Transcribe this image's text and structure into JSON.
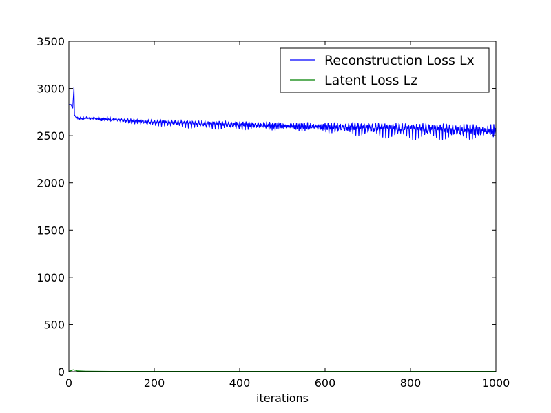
{
  "chart_data": {
    "type": "line",
    "xlabel": "iterations",
    "ylabel": "",
    "title": "",
    "xlim": [
      0,
      1000
    ],
    "ylim": [
      0,
      3500
    ],
    "xticks": [
      0,
      200,
      400,
      600,
      800,
      1000
    ],
    "yticks": [
      0,
      500,
      1000,
      1500,
      2000,
      2500,
      3000,
      3500
    ],
    "xtick_labels": [
      "0",
      "200",
      "400",
      "600",
      "800",
      "1000"
    ],
    "ytick_labels": [
      "0",
      "500",
      "1000",
      "1500",
      "2000",
      "2500",
      "3000",
      "3500"
    ],
    "grid": false,
    "legend_position": "top-right",
    "series": [
      {
        "name": "Reconstruction Loss Lx",
        "color": "#0000ff",
        "points": [
          [
            0,
            2830
          ],
          [
            5,
            2830
          ],
          [
            9,
            2790
          ],
          [
            12,
            3010
          ],
          [
            13,
            2720
          ],
          [
            16,
            2700
          ],
          [
            20,
            2690
          ],
          [
            30,
            2680
          ],
          [
            40,
            2690
          ],
          [
            50,
            2685
          ],
          [
            60,
            2685
          ],
          [
            70,
            2680
          ],
          [
            80,
            2675
          ],
          [
            90,
            2680
          ],
          [
            100,
            2670
          ],
          [
            110,
            2675
          ],
          [
            120,
            2670
          ],
          [
            140,
            2660
          ],
          [
            160,
            2655
          ],
          [
            180,
            2650
          ],
          [
            200,
            2645
          ],
          [
            220,
            2645
          ],
          [
            240,
            2640
          ],
          [
            260,
            2640
          ],
          [
            280,
            2635
          ],
          [
            300,
            2632
          ],
          [
            320,
            2630
          ],
          [
            340,
            2628
          ],
          [
            360,
            2625
          ],
          [
            380,
            2622
          ],
          [
            400,
            2620
          ],
          [
            420,
            2618
          ],
          [
            440,
            2616
          ],
          [
            460,
            2614
          ],
          [
            480,
            2612
          ],
          [
            500,
            2610
          ],
          [
            520,
            2608
          ],
          [
            540,
            2606
          ],
          [
            560,
            2604
          ],
          [
            580,
            2602
          ],
          [
            600,
            2600
          ],
          [
            620,
            2598
          ],
          [
            640,
            2596
          ],
          [
            660,
            2594
          ],
          [
            680,
            2592
          ],
          [
            700,
            2590
          ],
          [
            720,
            2588
          ],
          [
            740,
            2586
          ],
          [
            760,
            2584
          ],
          [
            780,
            2582
          ],
          [
            800,
            2580
          ],
          [
            820,
            2578
          ],
          [
            840,
            2576
          ],
          [
            860,
            2574
          ],
          [
            880,
            2572
          ],
          [
            900,
            2570
          ],
          [
            920,
            2568
          ],
          [
            940,
            2566
          ],
          [
            960,
            2564
          ],
          [
            980,
            2562
          ],
          [
            1000,
            2560
          ]
        ]
      },
      {
        "name": "Latent Loss Lz",
        "color": "#008000",
        "points": [
          [
            0,
            5
          ],
          [
            5,
            10
          ],
          [
            10,
            20
          ],
          [
            15,
            15
          ],
          [
            20,
            8
          ],
          [
            40,
            5
          ],
          [
            100,
            3
          ],
          [
            200,
            3
          ],
          [
            300,
            3
          ],
          [
            400,
            3
          ],
          [
            500,
            3
          ],
          [
            600,
            3
          ],
          [
            700,
            3
          ],
          [
            800,
            3
          ],
          [
            900,
            3
          ],
          [
            1000,
            3
          ]
        ]
      }
    ]
  }
}
